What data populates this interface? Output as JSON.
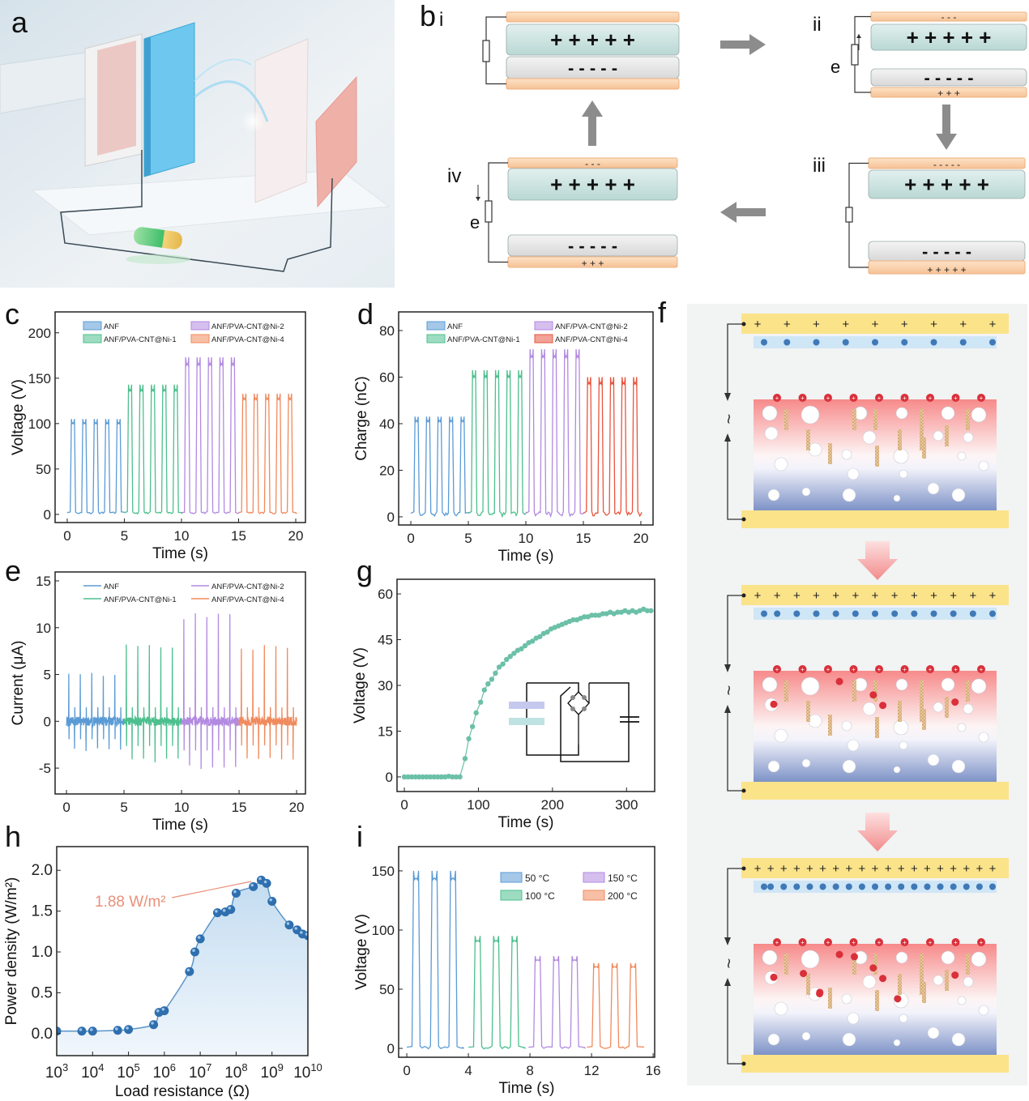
{
  "panel_labels": {
    "a": "a",
    "b": "b",
    "c": "c",
    "d": "d",
    "e": "e",
    "f": "f",
    "g": "g",
    "h": "h",
    "i": "i"
  },
  "panel_b": {
    "stages": [
      "i",
      "ii",
      "iii",
      "iv"
    ],
    "electron_label": "e",
    "plus_row": "+ + + + +",
    "minus_row": "- - - - -",
    "small_minus3": "-   -   -",
    "small_plus3": "+    +    +",
    "small_minus5": "-   -   -   -   -",
    "small_plus5": "+    +    +    +    +"
  },
  "panel_f": {
    "plus_symbol": "+",
    "minus_symbol": "−",
    "wave_symbol": "~"
  },
  "chart_data": [
    {
      "id": "c",
      "type": "line",
      "xlabel": "Time (s)",
      "ylabel": "Voltage (V)",
      "xlim": [
        -1.06,
        20.85
      ],
      "ylim": [
        -9,
        223
      ],
      "xticks": [
        0,
        5,
        10,
        15,
        20
      ],
      "yticks": [
        0,
        50,
        100,
        150,
        200
      ],
      "legend": "top",
      "series": [
        {
          "name": "ANF",
          "color": "#5b9bd5",
          "t": [
            0,
            5
          ],
          "peaks": 5,
          "peak": 105,
          "base": 2
        },
        {
          "name": "ANF/PVA-CNT@Ni-1",
          "color": "#4dbf8e",
          "t": [
            5,
            10
          ],
          "peaks": 5,
          "peak": 143,
          "base": 2
        },
        {
          "name": "ANF/PVA-CNT@Ni-2",
          "color": "#b28ae0",
          "t": [
            10,
            15
          ],
          "peaks": 5,
          "peak": 173,
          "base": 2
        },
        {
          "name": "ANF/PVA-CNT@Ni-4",
          "color": "#f08a5d",
          "t": [
            15,
            20
          ],
          "peaks": 5,
          "peak": 133,
          "base": 2
        }
      ]
    },
    {
      "id": "d",
      "type": "line",
      "xlabel": "Time (s)",
      "ylabel": "Charge (nC)",
      "xlim": [
        -1.06,
        21.06
      ],
      "ylim": [
        -3.5,
        88
      ],
      "xticks": [
        0,
        5,
        10,
        15,
        20
      ],
      "yticks": [
        0,
        20,
        40,
        60,
        80
      ],
      "legend": "top",
      "series": [
        {
          "name": "ANF",
          "color": "#5b9bd5",
          "t": [
            0,
            5
          ],
          "peaks": 5,
          "peak": 43,
          "base": 1.5
        },
        {
          "name": "ANF/PVA-CNT@Ni-1",
          "color": "#4dbf8e",
          "t": [
            5,
            10
          ],
          "peaks": 5,
          "peak": 63,
          "base": 1.5
        },
        {
          "name": "ANF/PVA-CNT@Ni-2",
          "color": "#b28ae0",
          "t": [
            10,
            15
          ],
          "peaks": 5,
          "peak": 72,
          "base": 1.5
        },
        {
          "name": "ANF/PVA-CNT@Ni-4",
          "color": "#e8553f",
          "t": [
            15,
            20
          ],
          "peaks": 5,
          "peak": 60,
          "base": 1.5
        }
      ]
    },
    {
      "id": "e",
      "type": "line",
      "xlabel": "Time (s)",
      "ylabel": "Current (μA)",
      "xlim": [
        -0.99,
        20.77
      ],
      "ylim": [
        -7.76,
        15.95
      ],
      "xticks": [
        0,
        5,
        10,
        15,
        20
      ],
      "yticks": [
        -5,
        0,
        5,
        10,
        15
      ],
      "legend": "top",
      "series": [
        {
          "name": "ANF",
          "color": "#5b9bd5",
          "t": [
            0,
            5
          ],
          "peaks": 5,
          "peak": 5.3,
          "trough": -3.2
        },
        {
          "name": "ANF/PVA-CNT@Ni-1",
          "color": "#4dbf8e",
          "t": [
            5,
            10
          ],
          "peaks": 5,
          "peak": 8.6,
          "trough": -4.4
        },
        {
          "name": "ANF/PVA-CNT@Ni-2",
          "color": "#b28ae0",
          "t": [
            10,
            15
          ],
          "peaks": 5,
          "peak": 11.6,
          "trough": -5.2
        },
        {
          "name": "ANF/PVA-CNT@Ni-4",
          "color": "#f08a5d",
          "t": [
            15,
            20
          ],
          "peaks": 5,
          "peak": 8.3,
          "trough": -4.3
        }
      ]
    },
    {
      "id": "g",
      "type": "scatter",
      "xlabel": "Time (s)",
      "ylabel": "Voltage (V)",
      "xlim": [
        -9.9,
        338
      ],
      "ylim": [
        -4.8,
        64.8
      ],
      "xticks": [
        0,
        100,
        200,
        300
      ],
      "yticks": [
        0,
        15,
        30,
        45,
        60
      ],
      "color": "#6cc0a8",
      "points": [
        [
          0,
          0
        ],
        [
          5,
          0
        ],
        [
          10,
          0
        ],
        [
          15,
          0
        ],
        [
          20,
          0
        ],
        [
          25,
          0
        ],
        [
          30,
          0
        ],
        [
          35,
          0
        ],
        [
          40,
          0
        ],
        [
          45,
          0
        ],
        [
          50,
          0
        ],
        [
          55,
          0
        ],
        [
          60,
          0.2
        ],
        [
          65,
          0
        ],
        [
          70,
          0
        ],
        [
          75,
          0
        ],
        [
          82,
          6
        ],
        [
          87,
          12.5
        ],
        [
          92,
          16.5
        ],
        [
          97,
          21
        ],
        [
          103,
          24.5
        ],
        [
          108,
          28.5
        ],
        [
          113,
          30.5
        ],
        [
          118,
          32
        ],
        [
          123,
          34
        ],
        [
          128,
          36
        ],
        [
          133,
          37
        ],
        [
          138,
          38.5
        ],
        [
          143,
          39.5
        ],
        [
          148,
          40.5
        ],
        [
          153,
          41.5
        ],
        [
          158,
          42
        ],
        [
          163,
          43
        ],
        [
          168,
          44
        ],
        [
          173,
          44.5
        ],
        [
          178,
          45.5
        ],
        [
          183,
          46
        ],
        [
          188,
          47
        ],
        [
          193,
          47.5
        ],
        [
          198,
          48.5
        ],
        [
          203,
          49
        ],
        [
          208,
          49.5
        ],
        [
          213,
          50
        ],
        [
          218,
          50.5
        ],
        [
          223,
          51
        ],
        [
          228,
          51.5
        ],
        [
          233,
          51.5
        ],
        [
          238,
          52
        ],
        [
          243,
          52.5
        ],
        [
          248,
          52.5
        ],
        [
          253,
          53
        ],
        [
          258,
          53
        ],
        [
          263,
          53
        ],
        [
          268,
          53.5
        ],
        [
          273,
          53.5
        ],
        [
          278,
          54
        ],
        [
          283,
          53.5
        ],
        [
          288,
          54
        ],
        [
          293,
          54
        ],
        [
          298,
          54.5
        ],
        [
          303,
          54
        ],
        [
          308,
          54.5
        ],
        [
          313,
          54
        ],
        [
          318,
          54.5
        ],
        [
          323,
          55
        ],
        [
          328,
          54.5
        ],
        [
          333,
          54.5
        ]
      ]
    },
    {
      "id": "h",
      "type": "line",
      "xlabel": "Load resistance (Ω)",
      "ylabel": "Power density (W/m²)",
      "xscale": "log10",
      "xlim": [
        3,
        10
      ],
      "ylim": [
        -0.27,
        2.29
      ],
      "xticks": [
        3,
        4,
        5,
        6,
        7,
        8,
        9,
        10
      ],
      "yticks": [
        0,
        0.5,
        1,
        1.5,
        2
      ],
      "ytick_labels": [
        "0.0",
        "0.5",
        "1.0",
        "1.5",
        "2.0"
      ],
      "color": "#2f6fae",
      "annotation": "1.88 W/m²",
      "annotation_color": "#e8907a",
      "points_log10R": [
        [
          3,
          0.03
        ],
        [
          3.7,
          0.03
        ],
        [
          4,
          0.03
        ],
        [
          4.7,
          0.04
        ],
        [
          5,
          0.05
        ],
        [
          5.7,
          0.11
        ],
        [
          5.85,
          0.26
        ],
        [
          6,
          0.28
        ],
        [
          6.7,
          0.76
        ],
        [
          6.85,
          1.0
        ],
        [
          7,
          1.16
        ],
        [
          7.48,
          1.48
        ],
        [
          7.7,
          1.49
        ],
        [
          7.85,
          1.52
        ],
        [
          8,
          1.72
        ],
        [
          8.48,
          1.8
        ],
        [
          8.7,
          1.88
        ],
        [
          8.85,
          1.84
        ],
        [
          9,
          1.62
        ],
        [
          9.48,
          1.33
        ],
        [
          9.7,
          1.27
        ],
        [
          9.85,
          1.22
        ],
        [
          10,
          1.2
        ]
      ]
    },
    {
      "id": "i",
      "type": "line",
      "xlabel": "Time (s)",
      "ylabel": "Voltage (V)",
      "xlim": [
        -0.53,
        16.1
      ],
      "ylim": [
        -7.5,
        170.5
      ],
      "xticks": [
        0,
        4,
        8,
        12,
        16
      ],
      "yticks": [
        0,
        50,
        100,
        150
      ],
      "legend": "top-right",
      "series": [
        {
          "name": "50 °C",
          "color": "#5b9bd5",
          "t": [
            0,
            3.6
          ],
          "peaks": 3,
          "peak": 150,
          "base": 1
        },
        {
          "name": "100 °C",
          "color": "#4dbf8e",
          "t": [
            4,
            7.6
          ],
          "peaks": 3,
          "peak": 95,
          "base": 1
        },
        {
          "name": "150 °C",
          "color": "#b28ae0",
          "t": [
            7.9,
            11.5
          ],
          "peaks": 3,
          "peak": 78,
          "base": 1
        },
        {
          "name": "200 °C",
          "color": "#f08a5d",
          "t": [
            11.7,
            15.3
          ],
          "peaks": 3,
          "peak": 72,
          "base": 1
        }
      ]
    }
  ]
}
